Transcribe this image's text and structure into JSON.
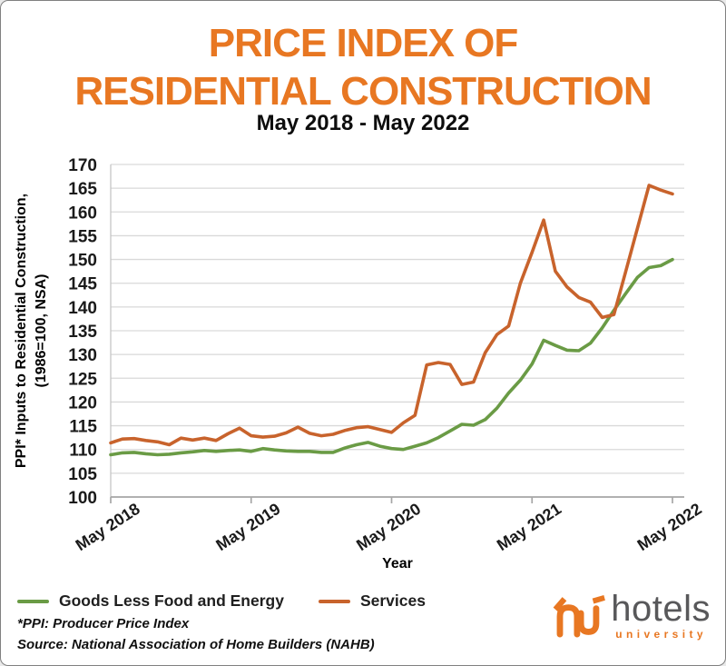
{
  "title": {
    "line1": "PRICE INDEX OF",
    "line2": "RESIDENTIAL CONSTRUCTION",
    "subtitle": "May 2018 - May 2022"
  },
  "chart_data": {
    "type": "line",
    "title": "PRICE INDEX OF RESIDENTIAL CONSTRUCTION",
    "subtitle": "May 2018 - May 2022",
    "xlabel": "Year",
    "ylabel_line1": "PPI* Inputs to Residential Construction,",
    "ylabel_line2": "(1986=100, NSA)",
    "ylim": [
      100,
      170
    ],
    "y_ticks": [
      100,
      105,
      110,
      115,
      120,
      125,
      130,
      135,
      140,
      145,
      150,
      155,
      160,
      165,
      170
    ],
    "x_ticks": [
      "May 2018",
      "May 2019",
      "May 2020",
      "May 2021",
      "May 2022"
    ],
    "grid": "horizontal",
    "legend_position": "bottom-left",
    "x": [
      "2018-05",
      "2018-06",
      "2018-07",
      "2018-08",
      "2018-09",
      "2018-10",
      "2018-11",
      "2018-12",
      "2019-01",
      "2019-02",
      "2019-03",
      "2019-04",
      "2019-05",
      "2019-06",
      "2019-07",
      "2019-08",
      "2019-09",
      "2019-10",
      "2019-11",
      "2019-12",
      "2020-01",
      "2020-02",
      "2020-03",
      "2020-04",
      "2020-05",
      "2020-06",
      "2020-07",
      "2020-08",
      "2020-09",
      "2020-10",
      "2020-11",
      "2020-12",
      "2021-01",
      "2021-02",
      "2021-03",
      "2021-04",
      "2021-05",
      "2021-06",
      "2021-07",
      "2021-08",
      "2021-09",
      "2021-10",
      "2021-11",
      "2021-12",
      "2022-01",
      "2022-02",
      "2022-03",
      "2022-04",
      "2022-05"
    ],
    "series": [
      {
        "name": "Goods Less Food and Energy",
        "color": "#6A9B45",
        "values": [
          108.9,
          109.3,
          109.4,
          109.1,
          108.9,
          109.0,
          109.3,
          109.5,
          109.8,
          109.6,
          109.8,
          109.9,
          109.6,
          110.2,
          109.9,
          109.7,
          109.6,
          109.6,
          109.4,
          109.4,
          110.3,
          111.0,
          111.5,
          110.7,
          110.2,
          110.0,
          110.7,
          111.4,
          112.5,
          113.9,
          115.3,
          115.1,
          116.3,
          118.7,
          121.9,
          124.6,
          128.0,
          133.0,
          131.9,
          130.9,
          130.8,
          132.4,
          135.6,
          139.3,
          142.8,
          146.2,
          148.3,
          148.7,
          150.0
        ]
      },
      {
        "name": "Services",
        "color": "#C8632C",
        "values": [
          111.4,
          112.2,
          112.3,
          111.9,
          111.6,
          111.0,
          112.4,
          112.0,
          112.4,
          111.9,
          113.3,
          114.5,
          112.9,
          112.6,
          112.8,
          113.5,
          114.7,
          113.4,
          112.9,
          113.2,
          114.0,
          114.6,
          114.8,
          114.2,
          113.6,
          115.6,
          117.2,
          127.8,
          128.3,
          127.9,
          123.7,
          124.2,
          130.4,
          134.2,
          136.0,
          145.0,
          151.5,
          158.3,
          147.5,
          144.2,
          142.0,
          141.0,
          137.8,
          138.4,
          147.4,
          156.5,
          165.6,
          164.6,
          163.8
        ]
      }
    ]
  },
  "footnotes": {
    "line1": "*PPI: Producer Price Index",
    "line2": "Source: National Association of Home Builders (NAHB)"
  },
  "logo": {
    "name": "hotels",
    "subname": "university"
  },
  "colors": {
    "title_orange": "#E87722",
    "goods_green": "#6A9B45",
    "services_orange": "#C8632C",
    "gridline": "#D9D9D9",
    "axis": "#A6A6A6",
    "border": "#808080",
    "logo_gray": "#58585A"
  }
}
